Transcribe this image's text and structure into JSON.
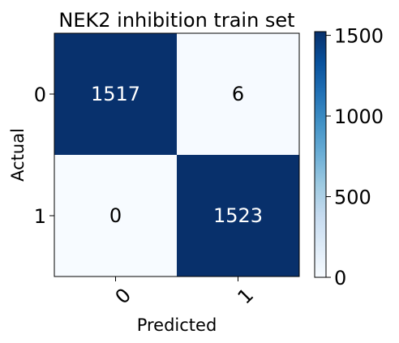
{
  "chart_data": {
    "type": "heatmap",
    "title": "NEK2 inhibition train set",
    "xlabel": "Predicted",
    "ylabel": "Actual",
    "x_categories": [
      "0",
      "1"
    ],
    "y_categories": [
      "0",
      "1"
    ],
    "matrix": [
      [
        1517,
        6
      ],
      [
        0,
        1523
      ]
    ],
    "colorbar": {
      "ticks": [
        "0",
        "500",
        "1000",
        "1500"
      ],
      "tick_values": [
        0,
        500,
        1000,
        1500
      ],
      "range": [
        0,
        1523
      ]
    },
    "colormap": "Blues",
    "colors": {
      "low": "#f7fbff",
      "high": "#08306b"
    }
  }
}
